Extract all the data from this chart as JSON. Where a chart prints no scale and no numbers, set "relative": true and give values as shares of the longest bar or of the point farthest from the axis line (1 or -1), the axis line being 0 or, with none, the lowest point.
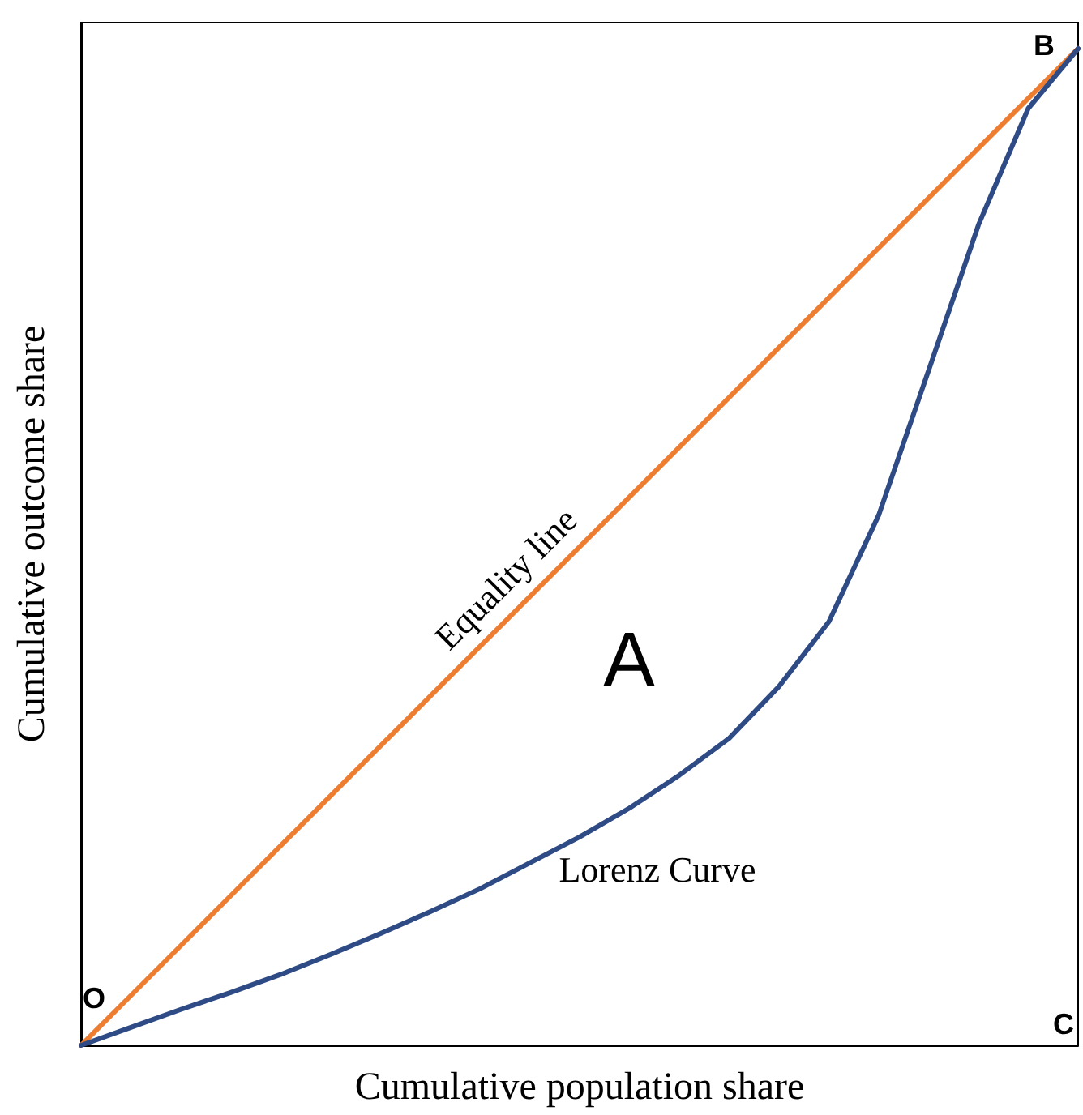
{
  "chart_data": {
    "type": "line",
    "relative": true,
    "xlabel": "Cumulative population share",
    "ylabel": "Cumulative outcome share",
    "categories": [
      null,
      null,
      null,
      null,
      null,
      null,
      null,
      null,
      null,
      null,
      null,
      null,
      null,
      null,
      null,
      null,
      null,
      null,
      null,
      null,
      null
    ],
    "series": [
      {
        "name": "Equality line",
        "color": "#ed7d31",
        "values": [
          0,
          0.05,
          0.1,
          0.15,
          0.2,
          0.25,
          0.3,
          0.35,
          0.4,
          0.45,
          0.5,
          0.55,
          0.6,
          0.65,
          0.7,
          0.75,
          0.8,
          0.85,
          0.9,
          0.95,
          1
        ]
      },
      {
        "name": "Lorenz Curve",
        "color": "#2f4b85",
        "values": [
          0,
          0.018,
          0.036,
          0.053,
          0.071,
          0.091,
          0.112,
          0.134,
          0.157,
          0.183,
          0.209,
          0.238,
          0.271,
          0.308,
          0.36,
          0.425,
          0.532,
          0.677,
          0.823,
          0.94,
          1
        ]
      }
    ],
    "marker": "none",
    "line_style": "solid",
    "grid": false,
    "legend": false,
    "annotations": [
      "A",
      "O",
      "B",
      "C"
    ]
  }
}
